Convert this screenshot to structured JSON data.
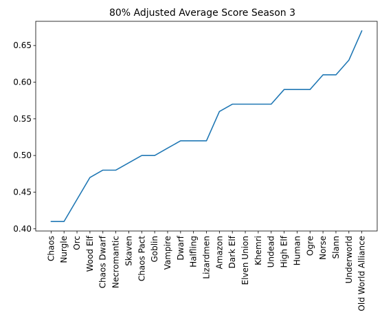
{
  "chart_data": {
    "type": "line",
    "title": "80% Adjusted Average Score Season 3",
    "xlabel": "",
    "ylabel": "",
    "categories": [
      "Chaos",
      "Nurgle",
      "Orc",
      "Wood Elf",
      "Chaos Dwarf",
      "Necromantic",
      "Skaven",
      "Chaos Pact",
      "Goblin",
      "Vampire",
      "Dwarf",
      "Halfling",
      "Lizardmen",
      "Amazon",
      "Dark Elf",
      "Elven Union",
      "Khemri",
      "Undead",
      "High Elf",
      "Human",
      "Ogre",
      "Norse",
      "Slann",
      "Underworld",
      "Old World Alliance"
    ],
    "series": [
      {
        "values": [
          0.41,
          0.41,
          0.44,
          0.47,
          0.48,
          0.48,
          0.49,
          0.5,
          0.5,
          0.51,
          0.52,
          0.52,
          0.52,
          0.56,
          0.57,
          0.57,
          0.57,
          0.57,
          0.59,
          0.59,
          0.59,
          0.61,
          0.61,
          0.63,
          0.67
        ],
        "color": "#1f77b4"
      }
    ],
    "yticks": [
      0.4,
      0.45,
      0.5,
      0.55,
      0.6,
      0.65
    ],
    "ytick_labels": [
      "0.40",
      "0.45",
      "0.50",
      "0.55",
      "0.60",
      "0.65"
    ],
    "ylim": [
      0.397,
      0.683
    ],
    "grid": false,
    "legend": "none"
  }
}
